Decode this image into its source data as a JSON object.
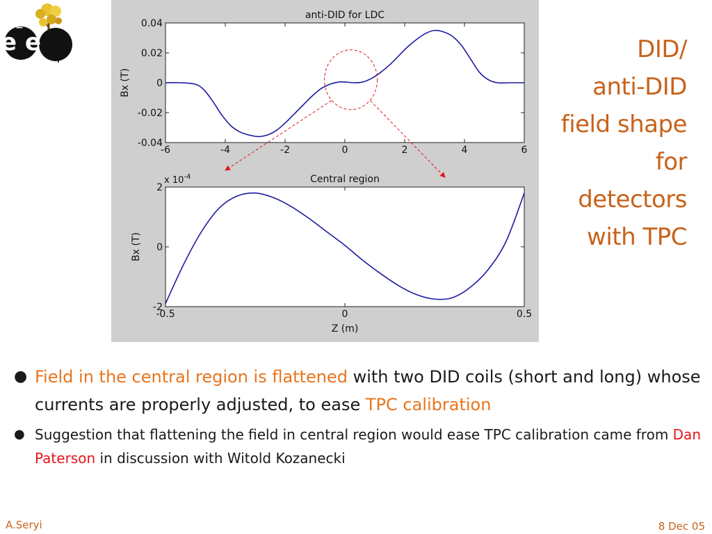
{
  "slide": {
    "title_lines": [
      "DID/",
      "anti-DID",
      "field shape",
      "for",
      "detectors",
      "with TPC"
    ],
    "bullets": [
      {
        "highlight": "Field in the central region is flattened",
        "text": " with two DID coils (short and long) whose currents are properly adjusted, to ease ",
        "highlight2": "TPC calibration"
      },
      {
        "text_before": "Suggestion that flattening the field in central region would ease TPC calibration came from ",
        "name": "Dan Paterson",
        "text_after": " in discussion with Witold Kozanecki"
      }
    ],
    "footer_left": "A.Seryi",
    "footer_right": "8 Dec 05",
    "logo_text": "e e",
    "logo_plus": "+",
    "logo_minus": "−",
    "colors": {
      "title": "#c8621a",
      "highlight": "#e8741c",
      "name": "#e3151b",
      "curve": "#1a1aa0",
      "annotation": "#e3151b"
    }
  },
  "chart_data": [
    {
      "type": "line",
      "title": "anti-DID for LDC",
      "xlabel": "",
      "ylabel": "Bx (T)",
      "xlim": [
        -6,
        6
      ],
      "ylim": [
        -0.04,
        0.04
      ],
      "xticks": [
        -6,
        -4,
        -2,
        0,
        2,
        4,
        6
      ],
      "yticks": [
        0.04,
        0.02,
        0,
        -0.02,
        -0.04
      ],
      "ytick_labels": [
        "0.04",
        "0.02",
        "0",
        "-0.02",
        "-0.04"
      ],
      "x": [
        -6,
        -5.5,
        -5,
        -4.7,
        -4.4,
        -4.1,
        -3.8,
        -3.5,
        -3.2,
        -2.9,
        -2.6,
        -2.3,
        -2.0,
        -1.7,
        -1.4,
        -1.1,
        -0.8,
        -0.5,
        -0.2,
        0,
        0.3,
        0.6,
        0.9,
        1.2,
        1.5,
        1.8,
        2.1,
        2.4,
        2.7,
        3.0,
        3.3,
        3.6,
        3.9,
        4.2,
        4.5,
        4.8,
        5.1,
        5.5,
        6
      ],
      "series": [
        {
          "values": [
            0,
            0,
            -0.001,
            -0.005,
            -0.013,
            -0.022,
            -0.029,
            -0.033,
            -0.035,
            -0.036,
            -0.035,
            -0.032,
            -0.027,
            -0.021,
            -0.015,
            -0.009,
            -0.004,
            -0.001,
            0.0005,
            0.0005,
            0,
            0.0005,
            0.003,
            0.007,
            0.012,
            0.018,
            0.024,
            0.029,
            0.033,
            0.035,
            0.034,
            0.031,
            0.025,
            0.016,
            0.007,
            0.002,
            0,
            0,
            0
          ]
        }
      ]
    },
    {
      "type": "line",
      "title": "Central region",
      "xlabel": "Z (m)",
      "ylabel": "Bx (T)",
      "y_multiplier": "x 10-4",
      "xlim": [
        -0.5,
        0.5
      ],
      "ylim": [
        -2,
        2
      ],
      "xticks": [
        -0.5,
        0,
        0.5
      ],
      "xtick_labels": [
        "-0.5",
        "0",
        "0.5"
      ],
      "yticks": [
        2,
        0,
        -2
      ],
      "ytick_labels": [
        "2",
        "0",
        "-2"
      ],
      "x": [
        -0.5,
        -0.45,
        -0.4,
        -0.35,
        -0.3,
        -0.25,
        -0.2,
        -0.15,
        -0.1,
        -0.05,
        0,
        0.05,
        0.1,
        0.15,
        0.2,
        0.25,
        0.3,
        0.35,
        0.4,
        0.45,
        0.5
      ],
      "series": [
        {
          "values": [
            -1.9,
            -0.6,
            0.5,
            1.3,
            1.7,
            1.8,
            1.65,
            1.35,
            0.95,
            0.5,
            0.05,
            -0.45,
            -0.9,
            -1.3,
            -1.6,
            -1.75,
            -1.7,
            -1.35,
            -0.75,
            0.2,
            1.8
          ]
        }
      ]
    }
  ]
}
